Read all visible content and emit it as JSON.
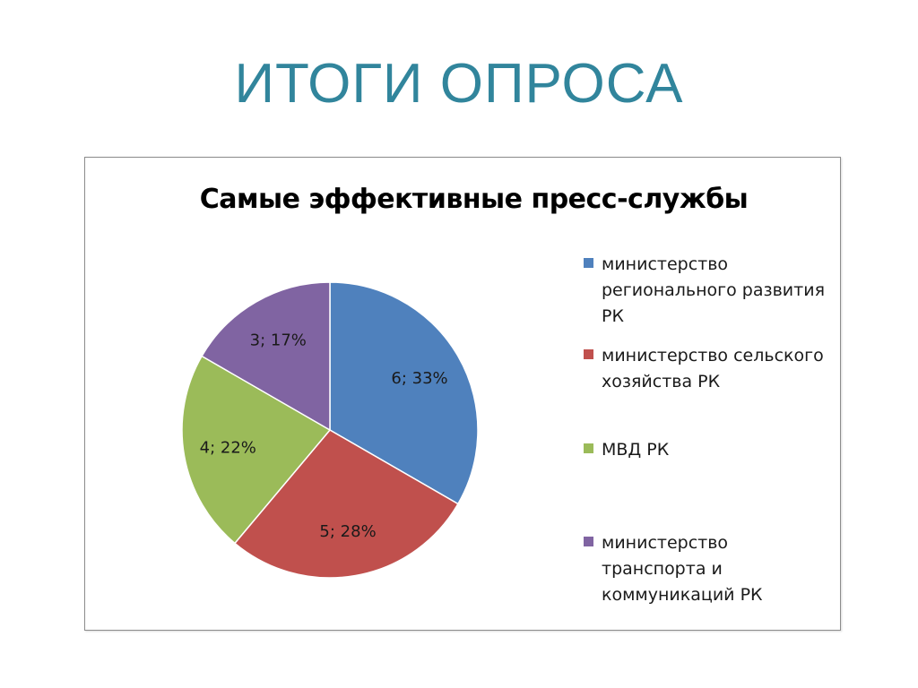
{
  "slide": {
    "title": "ИТОГИ ОПРОСА"
  },
  "chart_data": {
    "type": "pie",
    "title": "Самые эффективные пресс-службы",
    "legend_position": "right",
    "slices": [
      {
        "name": "министерство регионального развития РК",
        "value": 6,
        "percent": 33,
        "label": "6; 33%",
        "color": "#4f81bd"
      },
      {
        "name": "министерство сельского хозяйства РК",
        "value": 5,
        "percent": 28,
        "label": "5; 28%",
        "color": "#c0504d"
      },
      {
        "name": "МВД РК",
        "value": 4,
        "percent": 22,
        "label": "4; 22%",
        "color": "#9bbb59"
      },
      {
        "name": "министерство транспорта и коммуникаций РК",
        "value": 3,
        "percent": 17,
        "label": "3; 17%",
        "color": "#8064a2"
      }
    ]
  }
}
